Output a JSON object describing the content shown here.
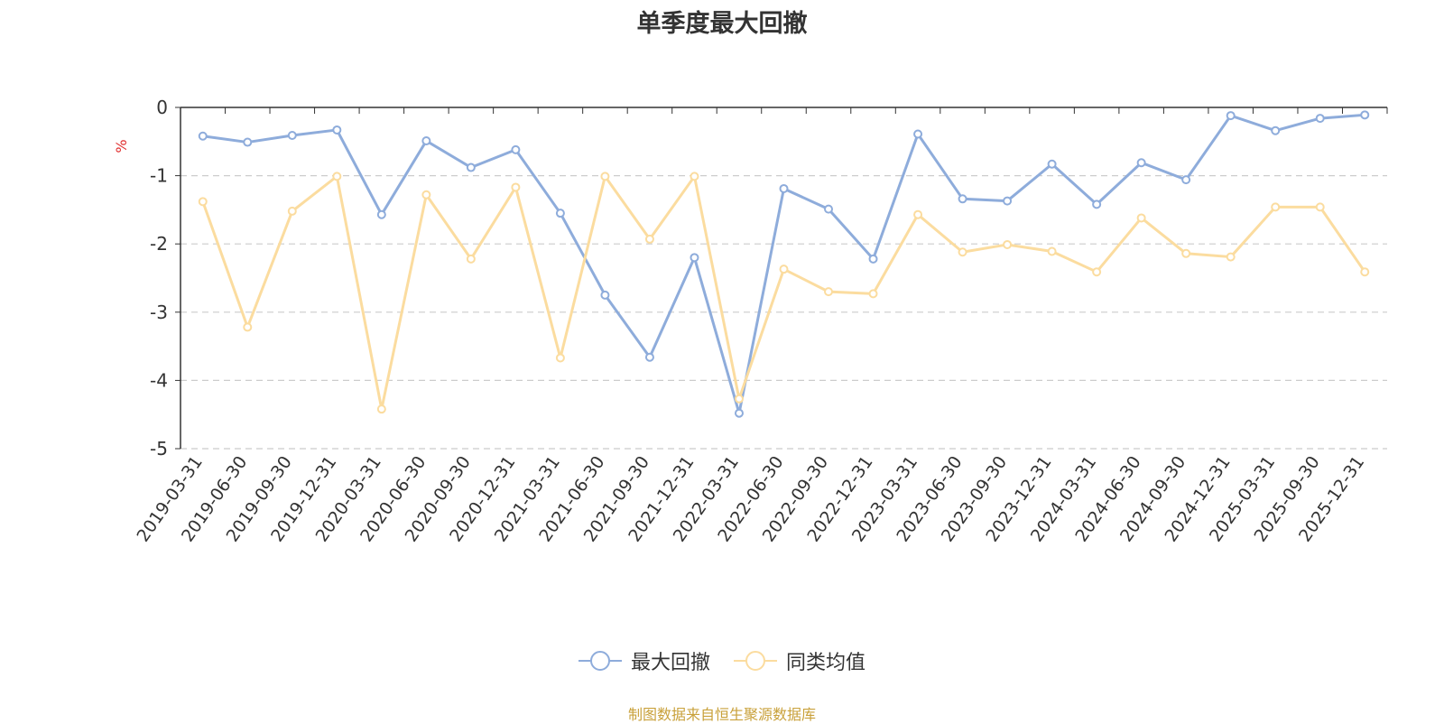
{
  "chart_data": {
    "type": "line",
    "title": "单季度最大回撤",
    "ylabel": "%",
    "ylim": [
      -5,
      0
    ],
    "yticks": [
      "0",
      "-1",
      "-2",
      "-3",
      "-4",
      "-5"
    ],
    "grid": true,
    "legend_position": "bottom",
    "categories": [
      "2019-03-31",
      "2019-06-30",
      "2019-09-30",
      "2019-12-31",
      "2020-03-31",
      "2020-06-30",
      "2020-09-30",
      "2020-12-31",
      "2021-03-31",
      "2021-06-30",
      "2021-09-30",
      "2021-12-31",
      "2022-03-31",
      "2022-06-30",
      "2022-09-30",
      "2022-12-31",
      "2023-03-31",
      "2023-06-30",
      "2023-09-30",
      "2023-12-31",
      "2024-03-31",
      "2024-06-30",
      "2024-09-30",
      "2024-12-31",
      "2025-03-31",
      "2025-09-30",
      "2025-12-31"
    ],
    "series": [
      {
        "name": "最大回撤",
        "color": "#8eacdb",
        "values": [
          -0.42,
          -0.51,
          -0.41,
          -0.33,
          -1.57,
          -0.49,
          -0.88,
          -0.62,
          -1.55,
          -2.75,
          -3.66,
          -2.2,
          -4.48,
          -1.19,
          -1.49,
          -2.22,
          -0.39,
          -1.34,
          -1.37,
          -0.83,
          -1.42,
          -0.81,
          -1.06,
          -0.12,
          -0.34,
          -0.16,
          -0.11
        ]
      },
      {
        "name": "同类均值",
        "color": "#fbdc9f",
        "values": [
          -1.38,
          -3.22,
          -1.52,
          -1.01,
          -4.42,
          -1.28,
          -2.22,
          -1.17,
          -3.67,
          -1.01,
          -1.93,
          -1.01,
          -4.27,
          -2.37,
          -2.7,
          -2.73,
          -1.57,
          -2.12,
          -2.01,
          -2.11,
          -2.41,
          -1.62,
          -2.14,
          -2.19,
          -1.46,
          -1.46,
          -2.41
        ]
      }
    ]
  },
  "footer": {
    "source": "制图数据来自恒生聚源数据库"
  }
}
